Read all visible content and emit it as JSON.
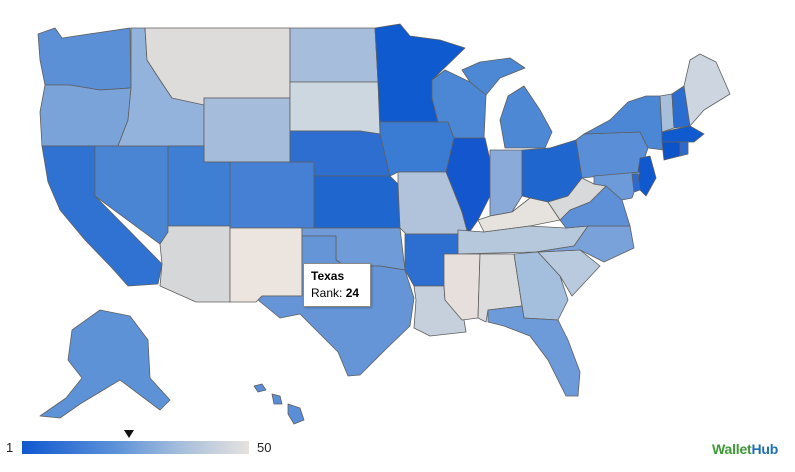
{
  "tooltip": {
    "state": "Texas",
    "rank_label": "Rank:",
    "rank_value": "24"
  },
  "legend": {
    "min": "1",
    "max": "50",
    "marker_value": 24
  },
  "brand": {
    "part1": "Wallet",
    "part2": "Hub"
  },
  "colors": {
    "rank_1": "#1058d0",
    "rank_50": "#e6e2de",
    "border": "#5a5a5a",
    "logo_green": "#3b9a35",
    "logo_blue": "#1e6fb8"
  }
}
